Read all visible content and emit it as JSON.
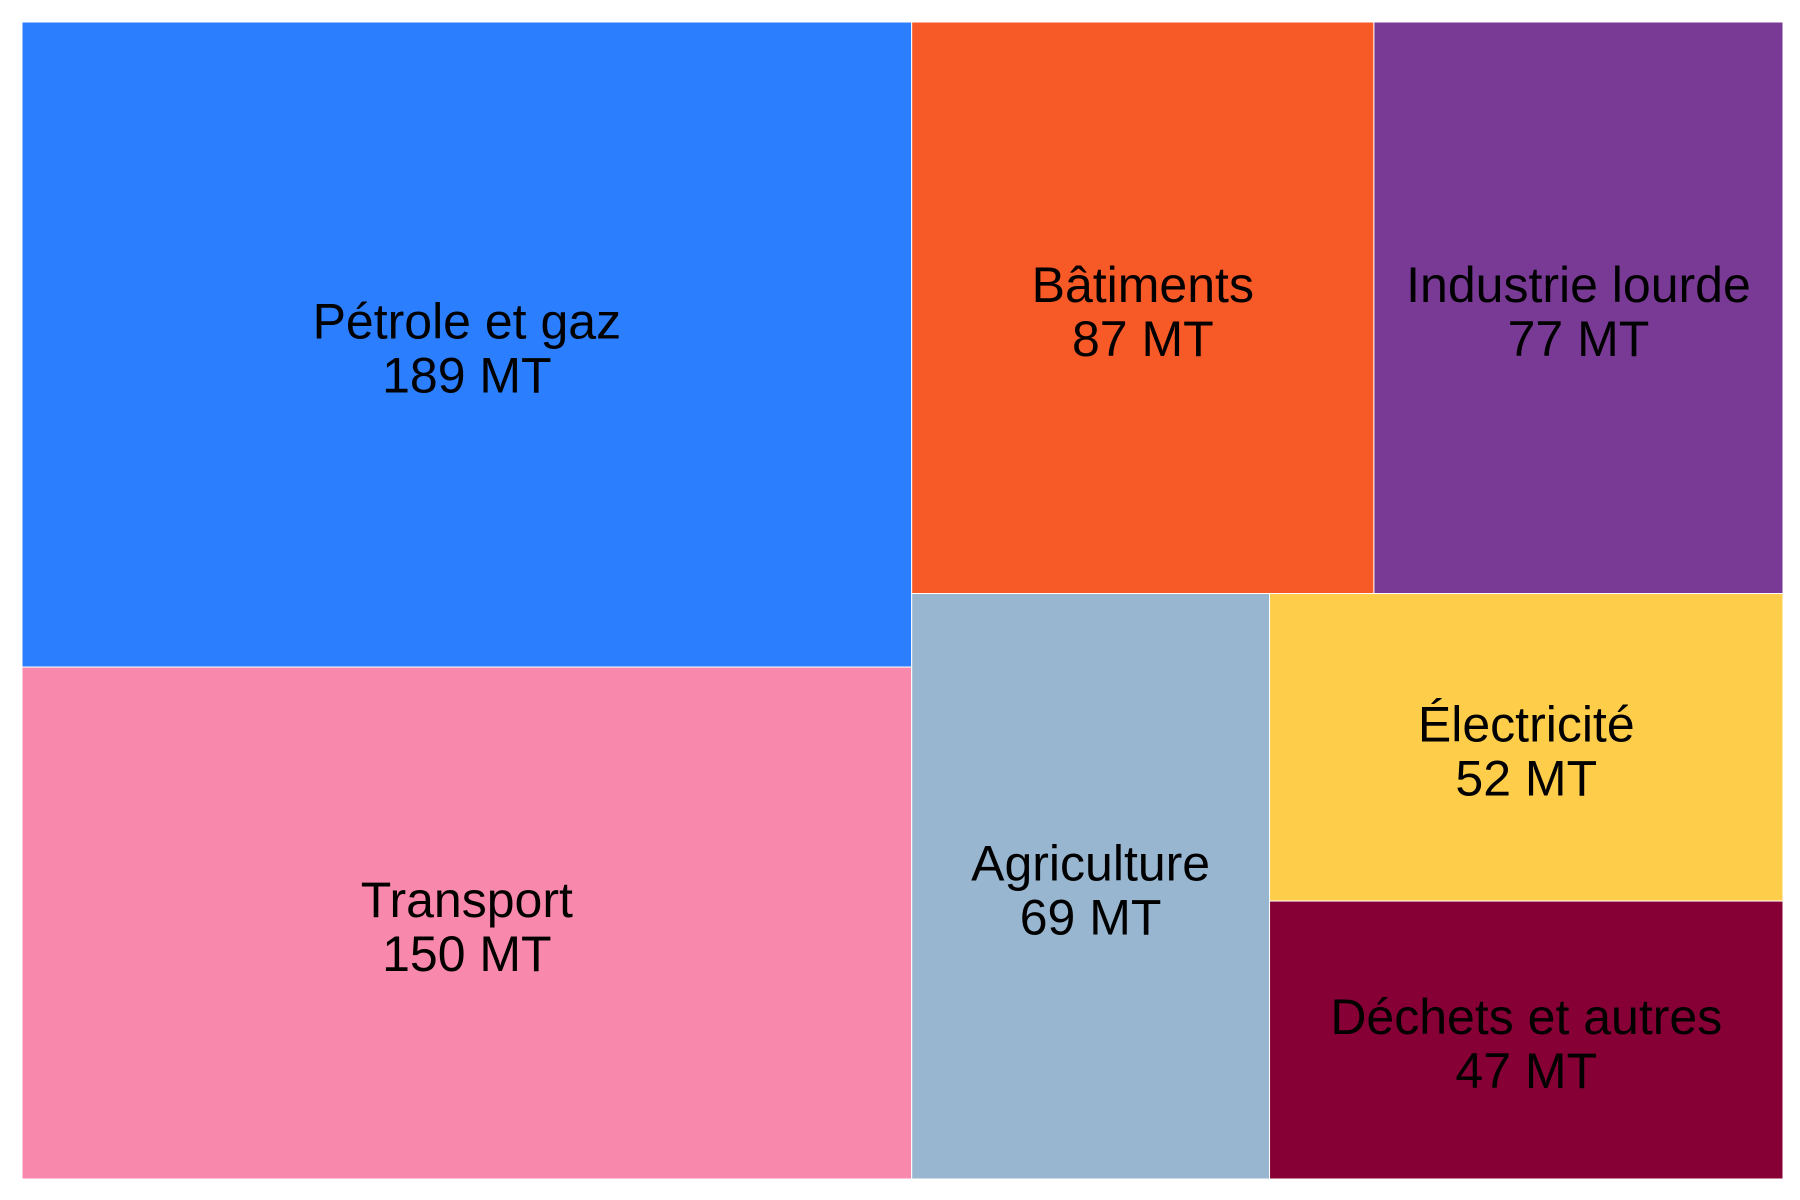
{
  "chart_data": {
    "type": "treemap",
    "unit": "MT",
    "nodes": [
      {
        "label": "Pétrole et gaz",
        "value": 189,
        "value_label": "189 MT",
        "color": "#2b7fff"
      },
      {
        "label": "Transport",
        "value": 150,
        "value_label": "150 MT",
        "color": "#f989ac"
      },
      {
        "label": "Bâtiments",
        "value": 87,
        "value_label": "87 MT",
        "color": "#f75927"
      },
      {
        "label": "Industrie lourde",
        "value": 77,
        "value_label": "77 MT",
        "color": "#783a94"
      },
      {
        "label": "Agriculture",
        "value": 69,
        "value_label": "69 MT",
        "color": "#98b6cf"
      },
      {
        "label": "Électricité",
        "value": 52,
        "value_label": "52 MT",
        "color": "#fecd4a"
      },
      {
        "label": "Déchets et autres",
        "value": 47,
        "value_label": "47 MT",
        "color": "#860035"
      }
    ]
  }
}
